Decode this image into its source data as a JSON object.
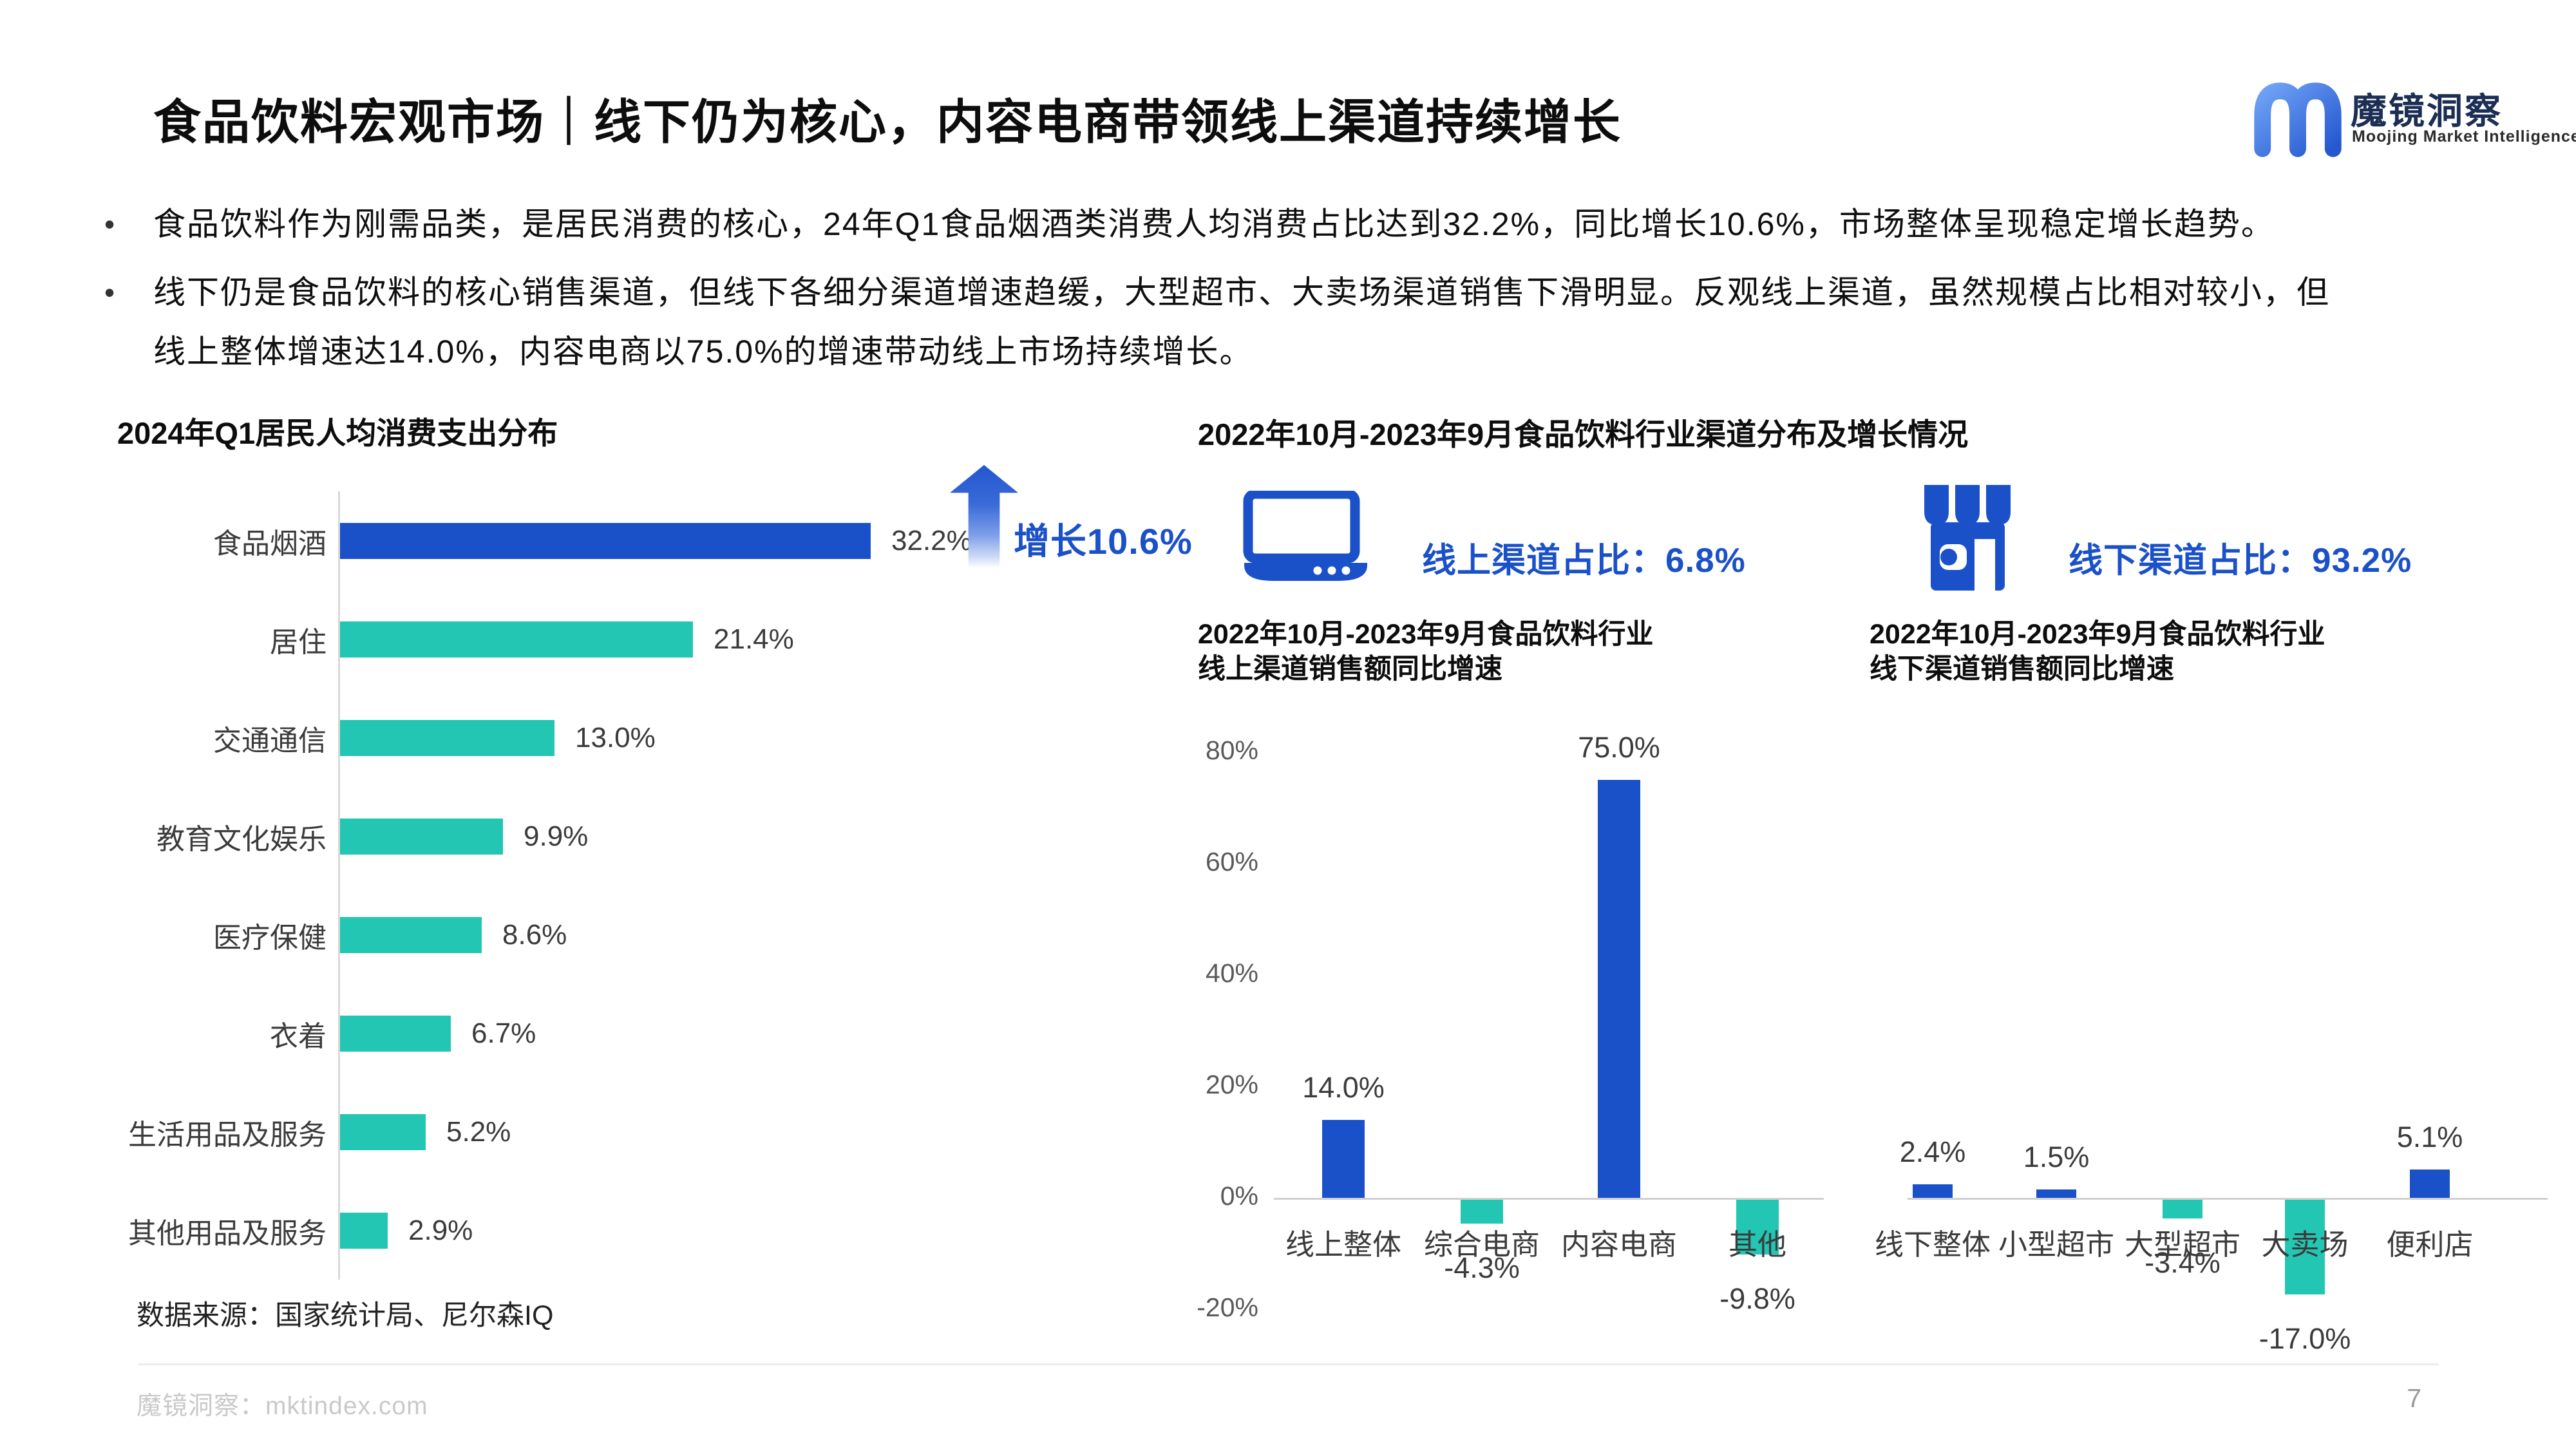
{
  "page": {
    "title": "食品饮料宏观市场｜线下仍为核心，内容电商带领线上渠道持续增长",
    "page_number": "7"
  },
  "logo": {
    "brand": "魔镜洞察",
    "subtitle": "Moojing Market Intelligence"
  },
  "bullets": [
    {
      "lines": [
        "食品饮料作为刚需品类，是居民消费的核心，24年Q1食品烟酒类消费人均消费占比达到32.2%，同比增长10.6%，市场整体呈现稳定增长趋势。"
      ]
    },
    {
      "lines": [
        "线下仍是食品饮料的核心销售渠道，但线下各细分渠道增速趋缓，大型超市、大卖场渠道销售下滑明显。反观线上渠道，虽然规模占比相对较小，但",
        "线上整体增速达14.0%，内容电商以75.0%的增速带动线上市场持续增长。"
      ]
    }
  ],
  "colors": {
    "blue": "#1B51C8",
    "teal": "#23C6B2",
    "axis_line": "#D0D0D0",
    "tick_gray": "#595959",
    "label_gray": "#3B3B3B",
    "brand_navy": "#1D2E54",
    "footer_gray": "#C9C9C9"
  },
  "left_section": {
    "growth_annotation": "增长10.6%",
    "source": "数据来源：国家统计局、尼尔森IQ"
  },
  "mid_section": {
    "header": "2022年10月-2023年9月食品饮料行业渠道分布及增长情况",
    "online_share_label": "线上渠道占比：6.8%",
    "offline_share_label": "线下渠道占比：93.2%"
  },
  "footer": {
    "site": "魔镜洞察：mktindex.com"
  },
  "chart_data": [
    {
      "id": "spend-distribution",
      "type": "bar",
      "orientation": "horizontal",
      "title": "2024年Q1居民人均消费支出分布",
      "categories": [
        "食品烟酒",
        "居住",
        "交通通信",
        "教育文化娱乐",
        "医疗保健",
        "衣着",
        "生活用品及服务",
        "其他用品及服务"
      ],
      "values": [
        32.2,
        21.4,
        13.0,
        9.9,
        8.6,
        6.7,
        5.2,
        2.9
      ],
      "value_labels": [
        "32.2%",
        "21.4%",
        "13.0%",
        "9.9%",
        "8.6%",
        "6.7%",
        "5.2%",
        "2.9%"
      ],
      "highlight_index": 0,
      "xlim": [
        0,
        35
      ],
      "annotation": "增长10.6%",
      "legend": "none",
      "grid": false
    },
    {
      "id": "online-growth",
      "type": "bar",
      "orientation": "vertical",
      "title": "2022年10月-2023年9月食品饮料行业\n线上渠道销售额同比增速",
      "categories": [
        "线上整体",
        "综合电商",
        "内容电商",
        "其他"
      ],
      "values": [
        14.0,
        -4.3,
        75.0,
        -9.8
      ],
      "value_labels": [
        "14.0%",
        "-4.3%",
        "75.0%",
        "-9.8%"
      ],
      "ylim": [
        -20,
        80
      ],
      "yticks": [
        "80%",
        "60%",
        "40%",
        "20%",
        "0%",
        "-20%"
      ],
      "ytick_values": [
        80,
        60,
        40,
        20,
        0,
        -20
      ],
      "legend": "none",
      "grid": false
    },
    {
      "id": "offline-growth",
      "type": "bar",
      "orientation": "vertical",
      "title": "2022年10月-2023年9月食品饮料行业\n线下渠道销售额同比增速",
      "categories": [
        "线下整体",
        "小型超市",
        "大型超市",
        "大卖场",
        "便利店"
      ],
      "values": [
        2.4,
        1.5,
        -3.4,
        -17.0,
        5.1
      ],
      "value_labels": [
        "2.4%",
        "1.5%",
        "-3.4%",
        "-17.0%",
        "5.1%"
      ],
      "ylim": [
        -20,
        80
      ],
      "yticks": [],
      "ytick_values": [],
      "legend": "none",
      "grid": false
    }
  ]
}
